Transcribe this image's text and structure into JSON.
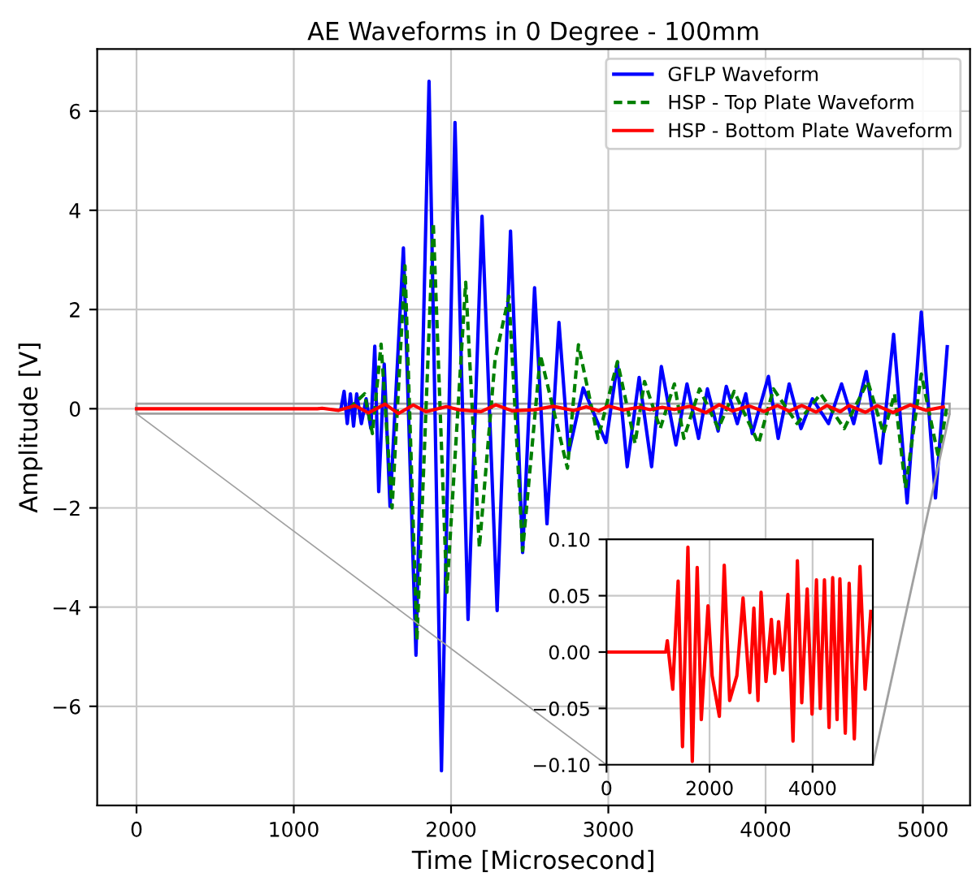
{
  "chart_data": [
    {
      "type": "line",
      "title": "AE Waveforms in 0 Degree - 100mm",
      "xlabel": "Time [Microsecond]",
      "ylabel": "Amplitude [V]",
      "xlim": [
        -250,
        5300
      ],
      "ylim": [
        -8,
        7.25
      ],
      "xticks": [
        0,
        1000,
        2000,
        3000,
        4000,
        5000
      ],
      "yticks": [
        {
          "value": -6,
          "label": "−6"
        },
        {
          "value": -4,
          "label": "−4"
        },
        {
          "value": -2,
          "label": "−2"
        },
        0,
        2,
        4,
        6
      ],
      "grid": true,
      "legend": "top right",
      "marker": "none",
      "series": [
        {
          "name": "GFLP Waveform",
          "color": "#0000ff",
          "line_style": "solid",
          "x": [
            1300,
            1320,
            1340,
            1360,
            1380,
            1400,
            1430,
            1460,
            1490,
            1515,
            1540,
            1575,
            1612,
            1697,
            1777,
            1860,
            1939,
            2025,
            2108,
            2197,
            2293,
            2378,
            2455,
            2531,
            2610,
            2686,
            2748,
            2840,
            2985,
            3058,
            3120,
            3196,
            3275,
            3337,
            3430,
            3500,
            3574,
            3630,
            3698,
            3750,
            3820,
            3874,
            3915,
            4018,
            4080,
            4150,
            4225,
            4298,
            4400,
            4483,
            4560,
            4640,
            4730,
            4814,
            4900,
            4990,
            5080,
            5155
          ],
          "values": [
            0,
            0.35,
            -0.3,
            0.3,
            -0.35,
            0.3,
            -0.3,
            0.2,
            -0.4,
            1.26,
            -1.67,
            0.9,
            -1.97,
            3.24,
            -4.97,
            6.6,
            -7.3,
            5.77,
            -4.25,
            3.88,
            -4.07,
            3.58,
            -2.9,
            2.44,
            -2.32,
            1.74,
            -0.89,
            0.42,
            -0.68,
            0.92,
            -1.17,
            0.63,
            -1.17,
            0.85,
            -0.73,
            0.5,
            -0.6,
            0.4,
            -0.45,
            0.45,
            -0.3,
            0.3,
            -0.5,
            0.65,
            -0.6,
            0.5,
            -0.4,
            0.2,
            -0.3,
            0.5,
            -0.3,
            0.75,
            -1.1,
            1.5,
            -1.9,
            1.95,
            -1.8,
            1.25
          ]
        },
        {
          "name": "HSP - Top Plate Waveform",
          "color": "#008000",
          "line_style": "dashed",
          "x": [
            1350,
            1450,
            1500,
            1555,
            1625,
            1707,
            1783,
            1887,
            1973,
            2093,
            2180,
            2280,
            2368,
            2455,
            2568,
            2740,
            2810,
            2935,
            3058,
            3170,
            3230,
            3330,
            3420,
            3480,
            3580,
            3700,
            3800,
            3955,
            4050,
            4200,
            4350,
            4500,
            4650,
            4750,
            4820,
            4890,
            4990,
            5100,
            5150
          ],
          "values": [
            0,
            0.3,
            -0.5,
            1.3,
            -2.0,
            2.88,
            -4.67,
            3.75,
            -3.7,
            2.55,
            -2.8,
            1.0,
            2.27,
            -2.86,
            1.08,
            -1.2,
            1.29,
            -0.6,
            0.95,
            -0.7,
            0.55,
            -0.4,
            0.5,
            -0.6,
            0.4,
            -0.4,
            0.35,
            -0.7,
            0.4,
            -0.3,
            0.3,
            -0.4,
            0.55,
            -0.5,
            0.3,
            -1.6,
            0.7,
            -1.0,
            0
          ]
        },
        {
          "name": "HSP - Bottom Plate Waveform",
          "color": "#ff0000",
          "line_style": "solid",
          "x": [
            0,
            1150,
            1180,
            1285,
            1390,
            1475,
            1580,
            1665,
            1760,
            1840,
            1970,
            2050,
            2190,
            2285,
            2390,
            2530,
            2650,
            2780,
            2860,
            2940,
            3000,
            3095,
            3200,
            3265,
            3340,
            3420,
            3520,
            3620,
            3705,
            3790,
            3895,
            3990,
            4075,
            4150,
            4230,
            4320,
            4390,
            4475,
            4530,
            4635,
            4710,
            4810,
            4920,
            5020,
            5130
          ],
          "values": [
            0,
            0,
            0.01,
            -0.033,
            0.063,
            -0.084,
            0.093,
            -0.097,
            0.075,
            -0.06,
            0.041,
            -0.021,
            -0.057,
            0.077,
            -0.043,
            -0.021,
            0.048,
            -0.036,
            0.039,
            -0.043,
            0.053,
            -0.026,
            0.029,
            -0.019,
            0.027,
            -0.016,
            0.051,
            -0.079,
            0.081,
            -0.045,
            0.056,
            -0.055,
            0.064,
            -0.05,
            0.064,
            -0.067,
            0.066,
            -0.06,
            0.065,
            -0.072,
            0.061,
            -0.077,
            0.076,
            -0.033,
            0.036
          ]
        }
      ]
    },
    {
      "type": "line",
      "xlim": [
        0,
        5170
      ],
      "ylim": [
        -0.1,
        0.1
      ],
      "xticks": [
        0,
        2000,
        4000
      ],
      "yticks": [
        {
          "value": -0.1,
          "label": "−0.10"
        },
        {
          "value": -0.05,
          "label": "−0.05"
        },
        {
          "value": 0,
          "label": "0.00"
        },
        {
          "value": 0.05,
          "label": "0.05"
        },
        {
          "value": 0.1,
          "label": "0.10"
        }
      ],
      "grid": true,
      "marker": "none",
      "series": [
        {
          "color": "#ff0000",
          "line_style": "solid",
          "x": [
            0,
            1150,
            1180,
            1285,
            1390,
            1475,
            1580,
            1665,
            1760,
            1840,
            1970,
            2050,
            2190,
            2285,
            2390,
            2530,
            2650,
            2780,
            2860,
            2940,
            3000,
            3095,
            3200,
            3265,
            3340,
            3420,
            3520,
            3620,
            3705,
            3790,
            3895,
            3990,
            4075,
            4150,
            4230,
            4320,
            4390,
            4475,
            4530,
            4635,
            4710,
            4810,
            4920,
            5020,
            5130
          ],
          "values": [
            0,
            0,
            0.01,
            -0.033,
            0.063,
            -0.084,
            0.093,
            -0.097,
            0.075,
            -0.06,
            0.041,
            -0.021,
            -0.057,
            0.077,
            -0.043,
            -0.021,
            0.048,
            -0.036,
            0.039,
            -0.043,
            0.053,
            -0.026,
            0.029,
            -0.019,
            0.027,
            -0.016,
            0.051,
            -0.079,
            0.081,
            -0.045,
            0.056,
            -0.055,
            0.064,
            -0.05,
            0.064,
            -0.067,
            0.066,
            -0.06,
            0.065,
            -0.072,
            0.061,
            -0.077,
            0.076,
            -0.033,
            0.036
          ]
        }
      ]
    }
  ]
}
